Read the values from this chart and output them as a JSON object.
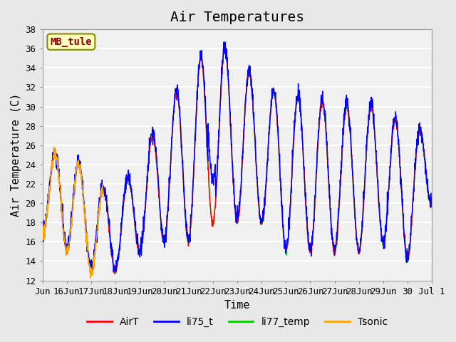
{
  "title": "Air Temperatures",
  "xlabel": "Time",
  "ylabel": "Air Temperature (C)",
  "ylim": [
    12,
    38
  ],
  "xlim_days": [
    15,
    31
  ],
  "station_label": "MB_tule",
  "station_label_color": "#8B0000",
  "station_box_color": "#FFFFC0",
  "legend_entries": [
    "AirT",
    "li75_t",
    "li77_temp",
    "Tsonic"
  ],
  "line_colors": [
    "#FF0000",
    "#0000FF",
    "#00CC00",
    "#FFA500"
  ],
  "background_color": "#E8E8E8",
  "plot_bg_color": "#F0F0F0",
  "grid_color": "#FFFFFF",
  "title_fontsize": 14,
  "axis_label_fontsize": 11,
  "tick_fontsize": 9,
  "legend_fontsize": 10,
  "tick_labels": [
    "Jun",
    "16Jun",
    "17Jun",
    "18Jun",
    "19Jun",
    "20Jun",
    "21Jun",
    "22Jun",
    "23Jun",
    "24Jun",
    "25Jun",
    "26Jun",
    "27Jun",
    "28Jun",
    "29Jun",
    "30",
    "Jul 1"
  ],
  "tick_positions": [
    15,
    16,
    17,
    18,
    19,
    20,
    21,
    22,
    23,
    24,
    25,
    26,
    27,
    28,
    29,
    30,
    31
  ]
}
